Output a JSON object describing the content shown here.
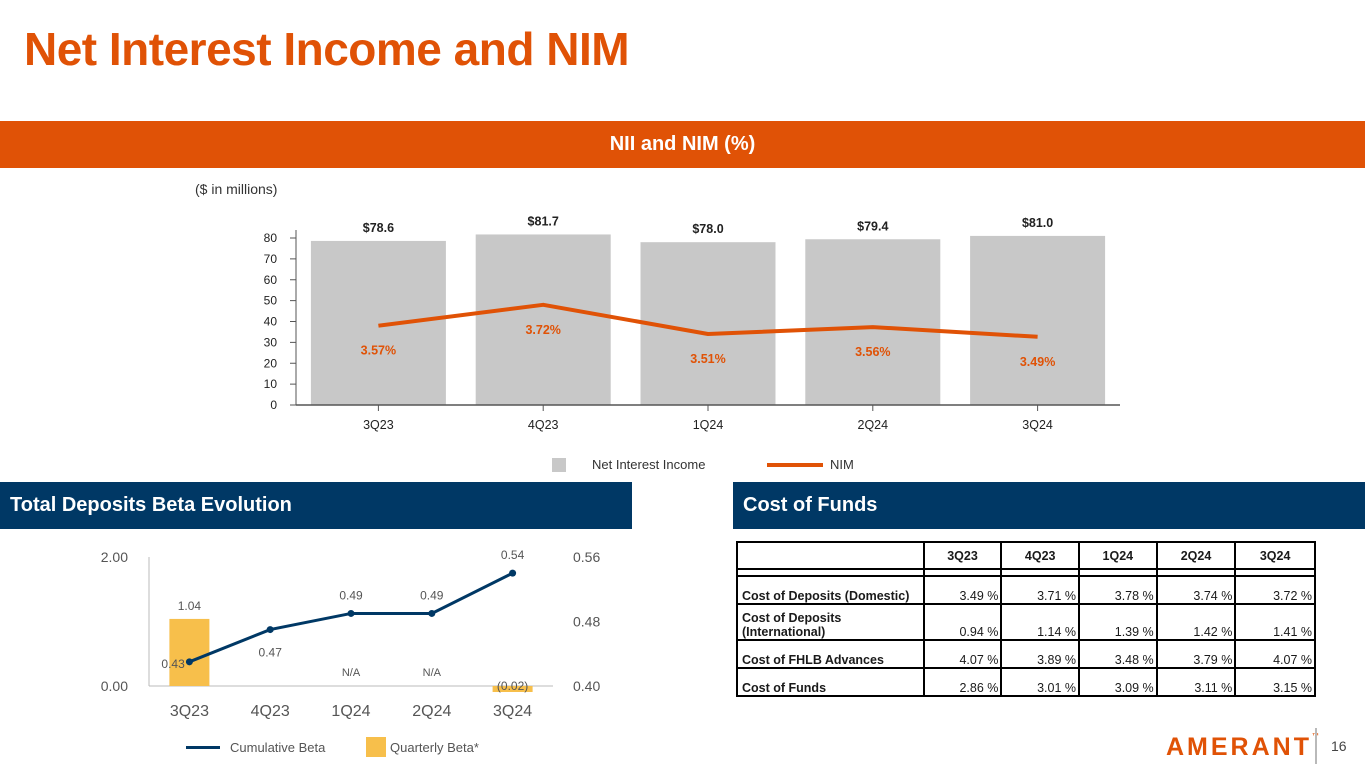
{
  "page": {
    "title": "Net Interest Income and NIM",
    "page_number": "16",
    "logo": "AMERANT",
    "logo_tm": "™"
  },
  "nii_section": {
    "banner": "NII and NIM (%)",
    "unit_note": "($ in millions)"
  },
  "colors": {
    "orange": "#e05206",
    "navy": "#003865",
    "bar_gray": "#c8c8c8",
    "beta_yellow": "#f7bf4b"
  },
  "chart_data": [
    {
      "id": "nii_nim",
      "type": "bar",
      "title": "NII and NIM (%)",
      "categories": [
        "3Q23",
        "4Q23",
        "1Q24",
        "2Q24",
        "3Q24"
      ],
      "series": [
        {
          "name": "Net Interest Income",
          "type": "bar",
          "values": [
            78.6,
            81.7,
            78.0,
            79.4,
            81.0
          ],
          "labels": [
            "$78.6",
            "$81.7",
            "$78.0",
            "$79.4",
            "$81.0"
          ]
        },
        {
          "name": "NIM",
          "type": "line",
          "values": [
            3.57,
            3.72,
            3.51,
            3.56,
            3.49
          ],
          "labels": [
            "3.57%",
            "3.72%",
            "3.51%",
            "3.56%",
            "3.49%"
          ]
        }
      ],
      "ylim": [
        0,
        80
      ],
      "yticks": [
        "0",
        "10",
        "20",
        "30",
        "40",
        "50",
        "60",
        "70",
        "80"
      ],
      "nim_axis_range": [
        3.0,
        4.2
      ],
      "legend": [
        "Net Interest Income",
        "NIM"
      ],
      "legend_position": "bottom"
    },
    {
      "id": "deposit_beta",
      "type": "bar",
      "title": "Total Deposits Beta Evolution",
      "categories": [
        "3Q23",
        "4Q23",
        "1Q24",
        "2Q24",
        "3Q24"
      ],
      "series": [
        {
          "name": "Quarterly Beta*",
          "type": "bar",
          "axis": "left",
          "values": [
            1.04,
            null,
            null,
            null,
            -0.02
          ],
          "labels": [
            "1.04",
            "",
            "N/A",
            "N/A",
            "(0.02)"
          ]
        },
        {
          "name": "Cumulative Beta",
          "type": "line",
          "axis": "right",
          "values": [
            0.43,
            0.47,
            0.49,
            0.49,
            0.54
          ],
          "labels": [
            "0.43",
            "0.47",
            "0.49",
            "0.49",
            "0.54"
          ]
        }
      ],
      "left_axis": {
        "ylim": [
          0.0,
          2.0
        ],
        "ticks": [
          "0.00",
          "2.00"
        ]
      },
      "right_axis": {
        "ylim": [
          0.4,
          0.56
        ],
        "ticks": [
          "0.40",
          "0.48",
          "0.56"
        ]
      },
      "legend": [
        "Cumulative Beta",
        "Quarterly Beta*"
      ],
      "legend_position": "bottom"
    }
  ],
  "beta_section": {
    "header": "Total Deposits Beta Evolution"
  },
  "cof_section": {
    "header": "Cost of Funds",
    "columns": [
      "",
      "3Q23",
      "4Q23",
      "1Q24",
      "2Q24",
      "3Q24"
    ],
    "rows": [
      {
        "label": "Cost of Deposits (Domestic)",
        "values": [
          "3.49 %",
          "3.71 %",
          "3.78 %",
          "3.74 %",
          "3.72 %"
        ]
      },
      {
        "label": "Cost of Deposits (International)",
        "values": [
          "0.94 %",
          "1.14 %",
          "1.39 %",
          "1.42 %",
          "1.41 %"
        ]
      },
      {
        "label": "Cost of FHLB Advances",
        "values": [
          "4.07 %",
          "3.89 %",
          "3.48 %",
          "3.79 %",
          "4.07 %"
        ]
      },
      {
        "label": "Cost of Funds",
        "values": [
          "2.86 %",
          "3.01 %",
          "3.09 %",
          "3.11 %",
          "3.15 %"
        ]
      }
    ]
  }
}
